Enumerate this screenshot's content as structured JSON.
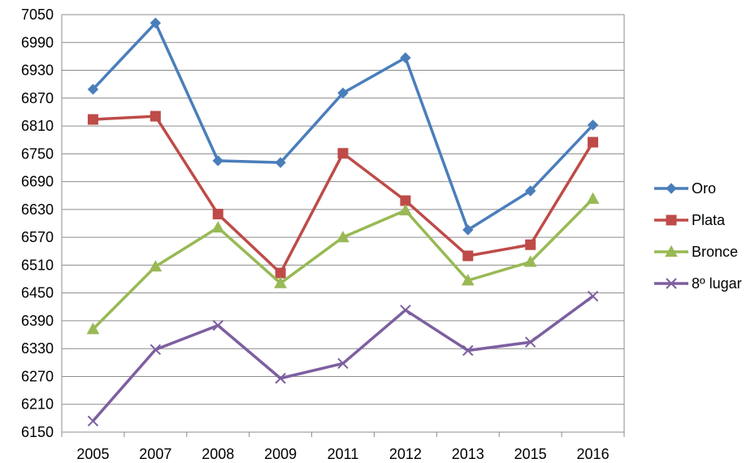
{
  "chart_data": {
    "type": "line",
    "title": "",
    "xlabel": "",
    "ylabel": "",
    "categories": [
      "2005",
      "2007",
      "2008",
      "2009",
      "2011",
      "2012",
      "2013",
      "2015",
      "2016"
    ],
    "ylim": [
      6150,
      7050
    ],
    "yticks": [
      6150,
      6210,
      6270,
      6330,
      6390,
      6450,
      6510,
      6570,
      6630,
      6690,
      6750,
      6810,
      6870,
      6930,
      6990,
      7050
    ],
    "grid": true,
    "legend_position": "right",
    "series": [
      {
        "name": "Oro",
        "color": "#4a7ebb",
        "marker": "diamond",
        "values": [
          6889,
          7032,
          6735,
          6731,
          6881,
          6957,
          6586,
          6670,
          6812
        ]
      },
      {
        "name": "Plata",
        "color": "#be4b48",
        "marker": "square",
        "values": [
          6824,
          6831,
          6620,
          6493,
          6751,
          6649,
          6530,
          6554,
          6775
        ]
      },
      {
        "name": "Bronce",
        "color": "#98b954",
        "marker": "triangle",
        "values": [
          6372,
          6507,
          6591,
          6471,
          6570,
          6628,
          6477,
          6517,
          6653
        ]
      },
      {
        "name": "8º lugar",
        "color": "#7d5fa0",
        "marker": "x",
        "values": [
          6174,
          6328,
          6380,
          6266,
          6298,
          6413,
          6326,
          6344,
          6443
        ]
      }
    ]
  }
}
